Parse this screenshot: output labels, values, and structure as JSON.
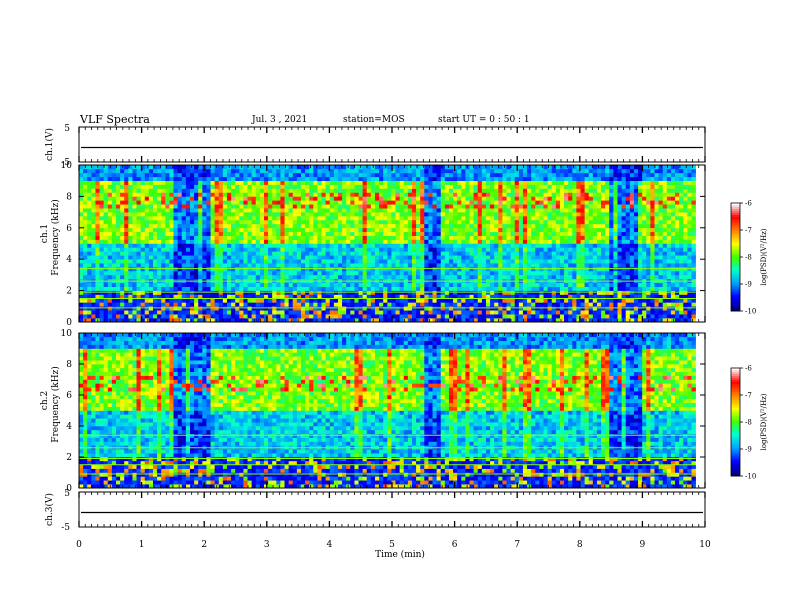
{
  "header": {
    "title": "VLF Spectra",
    "date": "Jul. 3 , 2021",
    "station": "station=MOS",
    "start": "start UT = 0 : 50 : 1"
  },
  "chart_data": [
    {
      "type": "line",
      "panel": "ch1-waveform",
      "ylabel": "ch.1(V)",
      "ylim": [
        -5,
        5
      ],
      "yticks": [
        "5",
        "-5"
      ],
      "xlim": [
        0,
        10
      ],
      "series_level": 0
    },
    {
      "type": "heatmap",
      "panel": "ch1-spectrogram",
      "ylabel_top": "ch.1",
      "ylabel": "Frequency (kHz)",
      "ylim": [
        0,
        10
      ],
      "yticks": [
        "0",
        "2",
        "4",
        "6",
        "8",
        "10"
      ],
      "xlim": [
        0,
        9.85
      ],
      "quiet_intervals_min": [
        [
          1.5,
          2.1
        ],
        [
          5.5,
          5.8
        ],
        [
          8.5,
          9.0
        ]
      ],
      "emission_band_khz": [
        5,
        9
      ],
      "colorbar": {
        "label": "log(PSD)(V²/Hz)",
        "range": [
          -10,
          -6
        ],
        "ticks": [
          "-6",
          "-7",
          "-8",
          "-9",
          "-10"
        ]
      }
    },
    {
      "type": "heatmap",
      "panel": "ch2-spectrogram",
      "ylabel_top": "ch.2",
      "ylabel": "Frequency (kHz)",
      "ylim": [
        0,
        10
      ],
      "yticks": [
        "0",
        "2",
        "4",
        "6",
        "8",
        "10"
      ],
      "xlim": [
        0,
        9.85
      ],
      "quiet_intervals_min": [
        [
          1.5,
          2.1
        ],
        [
          5.5,
          5.8
        ],
        [
          8.5,
          9.0
        ]
      ],
      "emission_band_khz": [
        5,
        9
      ],
      "colorbar": {
        "label": "log(PSD)(V²/Hz)",
        "range": [
          -10,
          -6
        ],
        "ticks": [
          "-6",
          "-7",
          "-8",
          "-9",
          "-10"
        ]
      }
    },
    {
      "type": "line",
      "panel": "ch3-waveform",
      "ylabel": "ch.3(V)",
      "ylim": [
        -5,
        5
      ],
      "yticks": [
        "5",
        "-5"
      ],
      "xlim": [
        0,
        10
      ],
      "series_level": 0
    }
  ],
  "xaxis": {
    "label": "Time (min)",
    "ticks": [
      "0",
      "1",
      "2",
      "3",
      "4",
      "5",
      "6",
      "7",
      "8",
      "9",
      "10"
    ]
  },
  "colors": {
    "colormap": [
      "#00007a",
      "#0000ff",
      "#00a0ff",
      "#00ffd0",
      "#40ff00",
      "#ffff00",
      "#ff8000",
      "#ff0000",
      "#ffffff"
    ]
  }
}
